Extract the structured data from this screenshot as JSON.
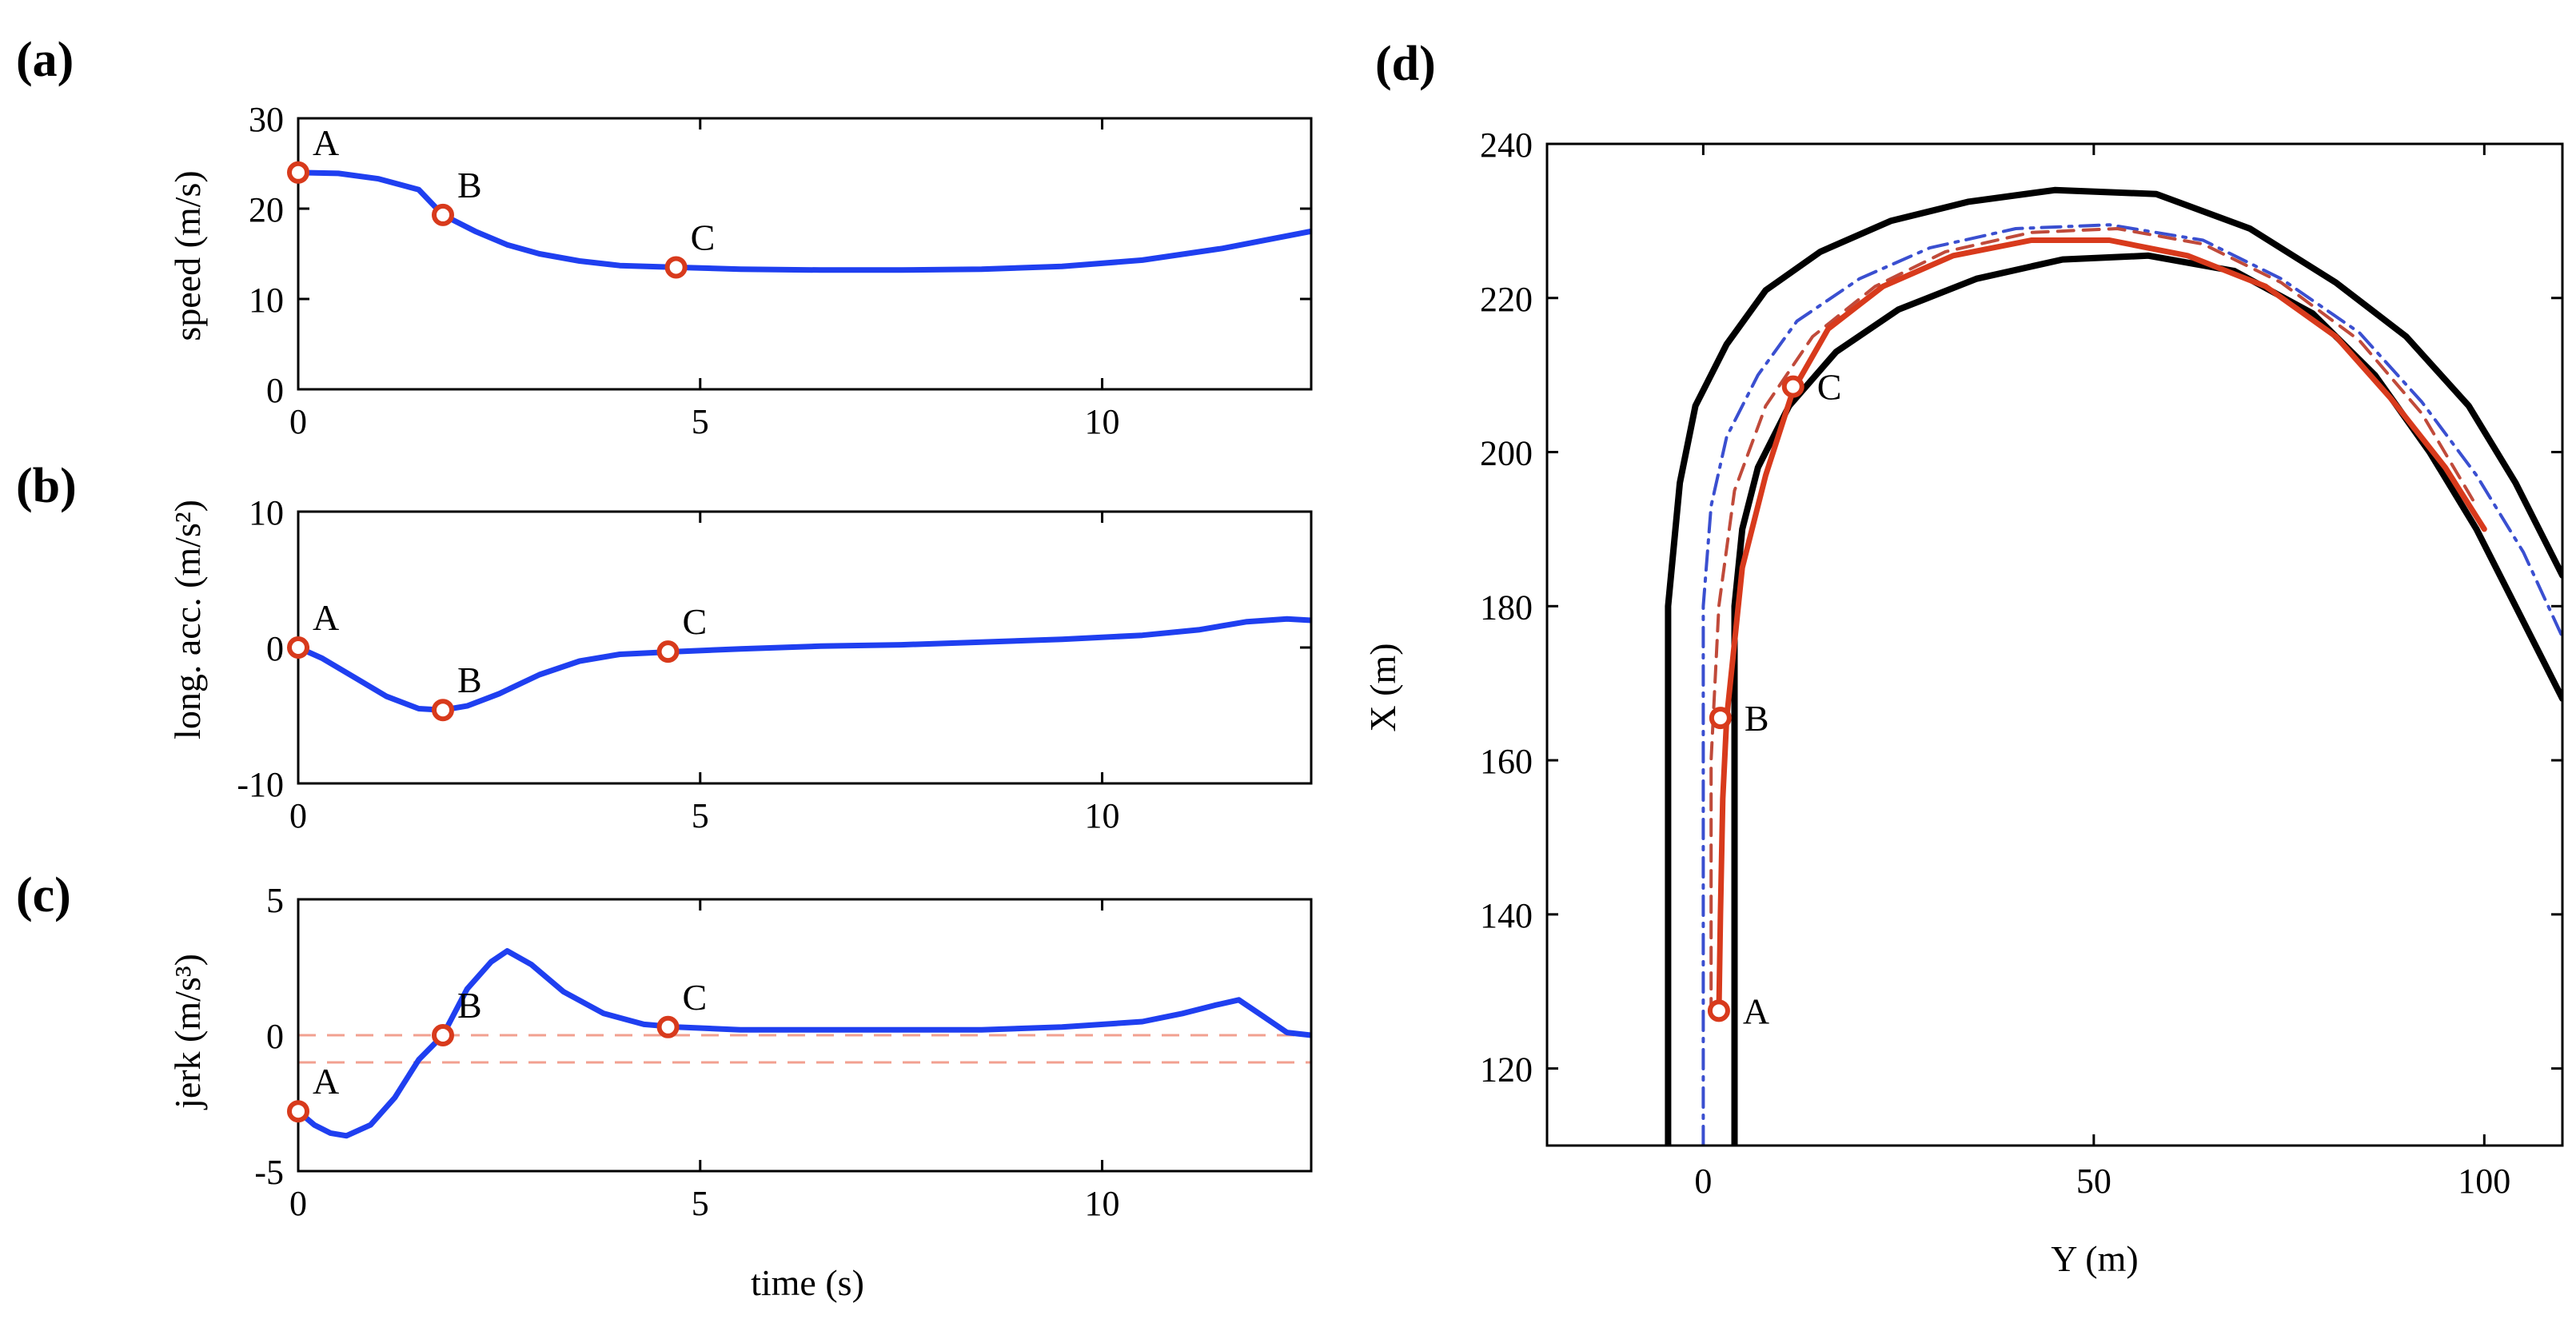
{
  "figure": {
    "colors": {
      "series": "#1f3ff0",
      "marker": "#d83a1c",
      "ref": "#f2a090",
      "border": "#000000",
      "path_center": "#3a4fd0",
      "path_offset": "#c04a3a"
    }
  },
  "chart_data": [
    {
      "id": "a",
      "panel_label": "(a)",
      "type": "line",
      "xlabel": "",
      "ylabel": "speed (m/s)",
      "xlim": [
        0,
        12.6
      ],
      "ylim": [
        0,
        30
      ],
      "xticks": [
        0,
        5,
        10
      ],
      "xtick_labels": [
        "0",
        "5",
        "10"
      ],
      "yticks": [
        0,
        10,
        20,
        30
      ],
      "ytick_labels": [
        "0",
        "10",
        "20",
        "30"
      ],
      "series": [
        {
          "name": "speed",
          "x": [
            0,
            0.5,
            1.0,
            1.5,
            1.8,
            2.2,
            2.6,
            3.0,
            3.5,
            4.0,
            4.7,
            5.5,
            6.5,
            7.5,
            8.5,
            9.5,
            10.5,
            11.5,
            12.6
          ],
          "y": [
            24,
            23.9,
            23.3,
            22.1,
            19.3,
            17.5,
            16.0,
            15.0,
            14.2,
            13.7,
            13.5,
            13.3,
            13.2,
            13.2,
            13.3,
            13.6,
            14.3,
            15.6,
            17.5
          ]
        }
      ],
      "markers": [
        {
          "label": "A",
          "x": 0,
          "y": 24
        },
        {
          "label": "B",
          "x": 1.8,
          "y": 19.3
        },
        {
          "label": "C",
          "x": 4.7,
          "y": 13.5
        }
      ],
      "ref_lines": []
    },
    {
      "id": "b",
      "panel_label": "(b)",
      "type": "line",
      "xlabel": "",
      "ylabel": "long. acc. (m/s²)",
      "xlim": [
        0,
        12.6
      ],
      "ylim": [
        -10,
        10
      ],
      "xticks": [
        0,
        5,
        10
      ],
      "xtick_labels": [
        "0",
        "5",
        "10"
      ],
      "yticks": [
        -10,
        0,
        10
      ],
      "ytick_labels": [
        "-10",
        "0",
        "10"
      ],
      "series": [
        {
          "name": "long. acc.",
          "x": [
            0,
            0.3,
            0.7,
            1.1,
            1.5,
            1.8,
            2.1,
            2.5,
            3.0,
            3.5,
            4.0,
            4.7,
            5.5,
            6.5,
            7.5,
            8.5,
            9.5,
            10.5,
            11.2,
            11.8,
            12.3,
            12.6
          ],
          "y": [
            0,
            -0.8,
            -2.2,
            -3.6,
            -4.5,
            -4.6,
            -4.3,
            -3.4,
            -2.0,
            -1.0,
            -0.5,
            -0.3,
            -0.1,
            0.1,
            0.2,
            0.4,
            0.6,
            0.9,
            1.3,
            1.9,
            2.1,
            2.0
          ]
        }
      ],
      "markers": [
        {
          "label": "A",
          "x": 0,
          "y": 0
        },
        {
          "label": "B",
          "x": 1.8,
          "y": -4.6
        },
        {
          "label": "C",
          "x": 4.6,
          "y": -0.3
        }
      ],
      "ref_lines": []
    },
    {
      "id": "c",
      "panel_label": "(c)",
      "type": "line",
      "xlabel": "time (s)",
      "ylabel": "jerk (m/s³)",
      "xlim": [
        0,
        12.6
      ],
      "ylim": [
        -5,
        5
      ],
      "xticks": [
        0,
        5,
        10
      ],
      "xtick_labels": [
        "0",
        "5",
        "10"
      ],
      "yticks": [
        -5,
        0,
        5
      ],
      "ytick_labels": [
        "-5",
        "0",
        "5"
      ],
      "series": [
        {
          "name": "jerk",
          "x": [
            0,
            0.2,
            0.4,
            0.6,
            0.9,
            1.2,
            1.5,
            1.8,
            2.1,
            2.4,
            2.6,
            2.9,
            3.3,
            3.8,
            4.3,
            4.7,
            5.5,
            6.5,
            7.5,
            8.5,
            9.5,
            10.5,
            11.0,
            11.4,
            11.7,
            12.0,
            12.3,
            12.6
          ],
          "y": [
            -2.8,
            -3.3,
            -3.6,
            -3.7,
            -3.3,
            -2.3,
            -0.9,
            0,
            1.7,
            2.7,
            3.1,
            2.6,
            1.6,
            0.8,
            0.4,
            0.3,
            0.2,
            0.2,
            0.2,
            0.2,
            0.3,
            0.5,
            0.8,
            1.1,
            1.3,
            0.7,
            0.1,
            0
          ]
        }
      ],
      "markers": [
        {
          "label": "A",
          "x": 0,
          "y": -2.8
        },
        {
          "label": "B",
          "x": 1.8,
          "y": 0
        },
        {
          "label": "C",
          "x": 4.6,
          "y": 0.3
        }
      ],
      "ref_lines": [
        0,
        -1
      ]
    },
    {
      "id": "d",
      "panel_label": "(d)",
      "type": "line",
      "xlabel": "Y (m)",
      "ylabel": "X (m)",
      "xlim": [
        -20,
        110
      ],
      "ylim": [
        110,
        240
      ],
      "xticks": [
        0,
        50,
        100
      ],
      "xtick_labels": [
        "0",
        "50",
        "100"
      ],
      "yticks": [
        120,
        140,
        160,
        180,
        200,
        220,
        240
      ],
      "ytick_labels": [
        "120",
        "140",
        "160",
        "180",
        "200",
        "220",
        "240"
      ],
      "series": [
        {
          "name": "road outer boundary",
          "style": "solid-black",
          "x": [
            -4.5,
            -4.5,
            -3,
            -1,
            3,
            8,
            15,
            24,
            34,
            45,
            58,
            70,
            81,
            90,
            98,
            104,
            110
          ],
          "y": [
            110,
            180,
            196,
            206,
            214,
            221,
            226,
            230,
            232.5,
            234,
            233.5,
            229,
            222,
            215,
            206,
            196,
            184
          ]
        },
        {
          "name": "road inner boundary",
          "style": "solid-black",
          "x": [
            4,
            4,
            5,
            7,
            11,
            17,
            25,
            35,
            46,
            57,
            68,
            78,
            86,
            93,
            99,
            104,
            110
          ],
          "y": [
            110,
            180,
            190,
            198,
            206,
            213,
            218.5,
            222.5,
            225,
            225.5,
            223.5,
            218,
            210,
            200,
            190,
            180,
            168
          ]
        },
        {
          "name": "center line",
          "style": "dashdot-blue",
          "x": [
            0,
            0,
            1,
            3,
            7,
            12,
            20,
            29,
            40,
            52,
            64,
            74,
            84,
            92,
            99,
            105,
            110
          ],
          "y": [
            110,
            180,
            193,
            202,
            210,
            217,
            222.5,
            226.5,
            229,
            229.5,
            227.5,
            222.5,
            215.5,
            206.5,
            197,
            187,
            176
          ]
        },
        {
          "name": "offset path",
          "style": "dashed-red",
          "x": [
            1,
            1,
            2,
            4,
            8,
            14,
            22,
            31,
            42,
            53,
            64,
            74,
            84,
            92,
            99
          ],
          "y": [
            127,
            160,
            180,
            195,
            206,
            215,
            221.5,
            226,
            228.5,
            229,
            227,
            222,
            214.5,
            205,
            193
          ]
        },
        {
          "name": "vehicle trajectory",
          "style": "solid-red",
          "x": [
            2,
            2.2,
            2.5,
            3,
            5,
            8,
            11.5,
            16,
            23,
            32,
            42,
            52,
            62,
            72,
            81,
            88,
            95,
            100
          ],
          "y": [
            127,
            140,
            155,
            165.5,
            185,
            197,
            208,
            216,
            221.5,
            225.5,
            227.5,
            227.5,
            225.5,
            221.5,
            215,
            207,
            198,
            190
          ]
        }
      ],
      "markers": [
        {
          "label": "A",
          "x": 2,
          "y": 127.5
        },
        {
          "label": "B",
          "x": 2.2,
          "y": 165.5
        },
        {
          "label": "C",
          "x": 11.5,
          "y": 208.5
        }
      ],
      "ref_lines": []
    }
  ]
}
